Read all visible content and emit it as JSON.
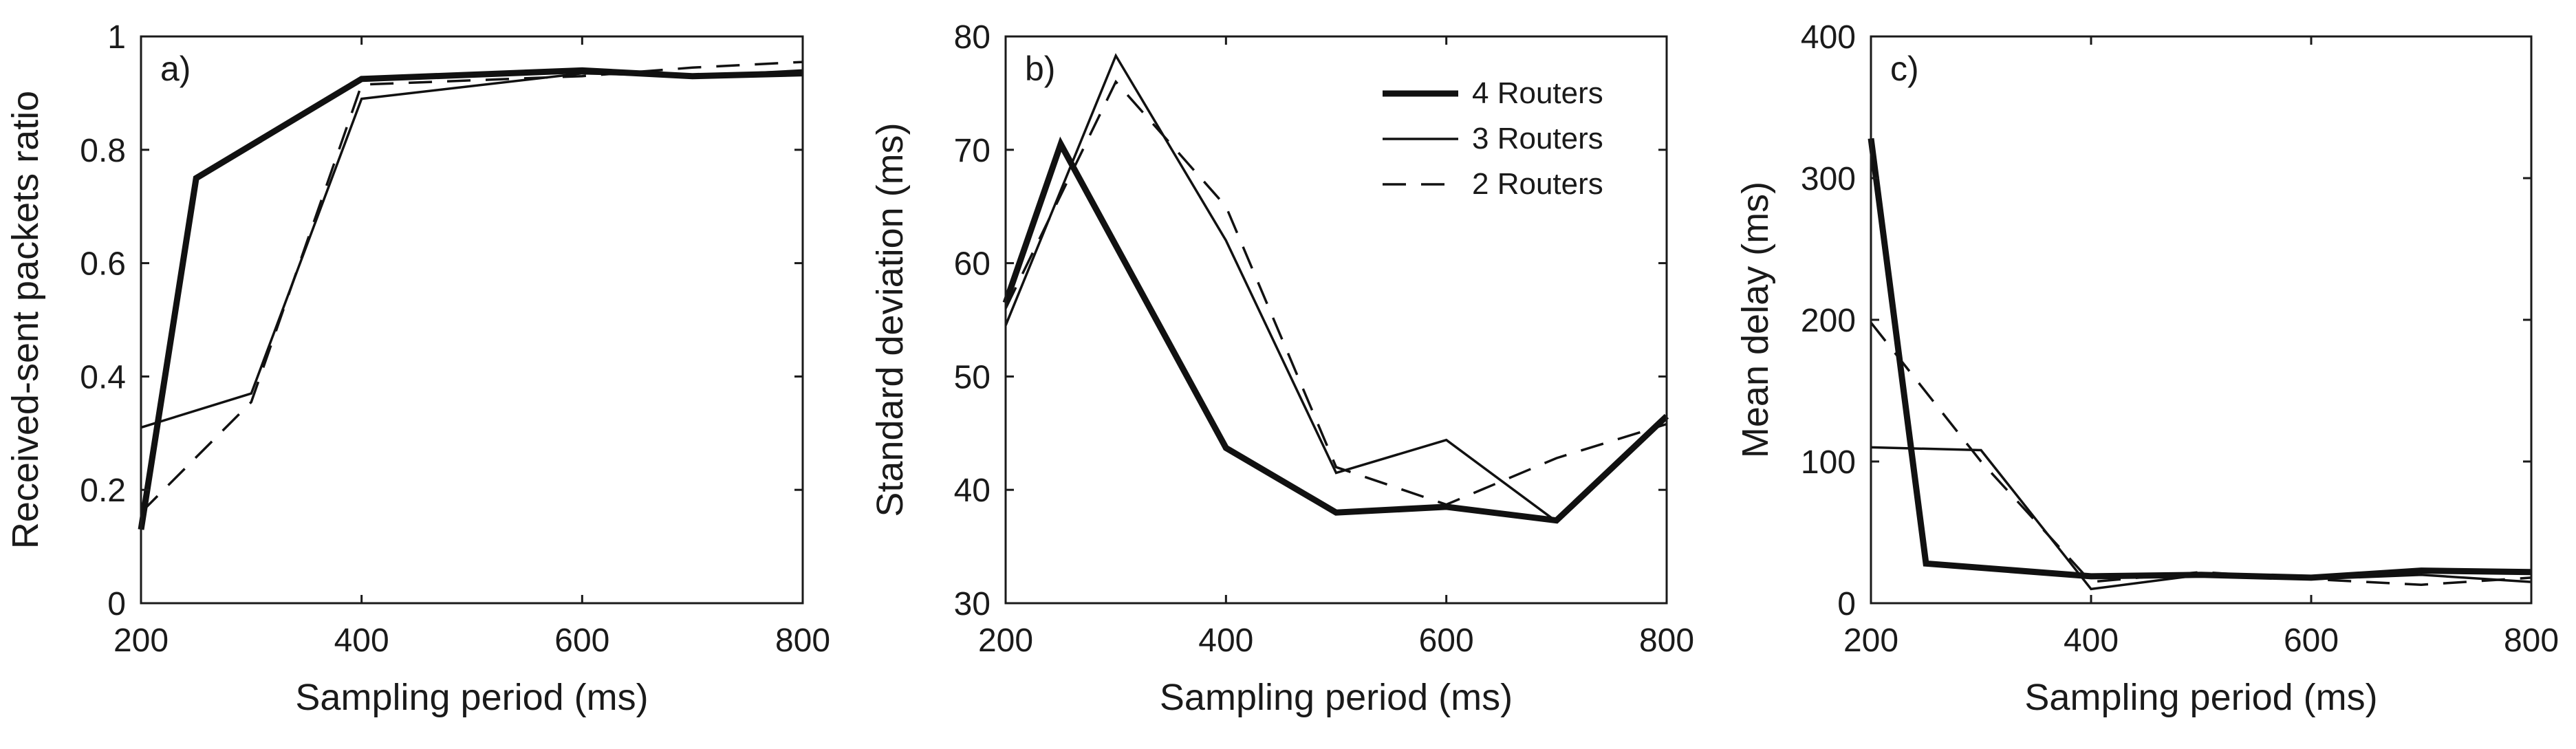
{
  "chart_data": [
    {
      "type": "line",
      "panel_label": "a)",
      "title": "",
      "xlabel": "Sampling period (ms)",
      "ylabel": "Received-sent packets ratio",
      "xlim": [
        200,
        800
      ],
      "ylim": [
        0,
        1
      ],
      "xticks": [
        200,
        400,
        600,
        800
      ],
      "yticks": [
        0,
        0.2,
        0.4,
        0.6,
        0.8,
        1
      ],
      "ytick_labels": [
        "0",
        "0.2",
        "0.4",
        "0.6",
        "0.8",
        "1"
      ],
      "grid": false,
      "legend": false,
      "series": [
        {
          "name": "4 Routers",
          "style": "thick",
          "x": [
            200,
            250,
            400,
            600,
            700,
            800
          ],
          "values": [
            0.13,
            0.75,
            0.925,
            0.94,
            0.93,
            0.935
          ]
        },
        {
          "name": "3 Routers",
          "style": "thin",
          "x": [
            200,
            300,
            400,
            600,
            700,
            800
          ],
          "values": [
            0.31,
            0.37,
            0.89,
            0.935,
            0.93,
            0.94
          ]
        },
        {
          "name": "2 Routers",
          "style": "dashed",
          "x": [
            200,
            300,
            400,
            600,
            700,
            800
          ],
          "values": [
            0.16,
            0.355,
            0.915,
            0.93,
            0.945,
            0.955
          ]
        }
      ]
    },
    {
      "type": "line",
      "panel_label": "b)",
      "title": "",
      "xlabel": "Sampling period (ms)",
      "ylabel": "Standard deviation (ms)",
      "xlim": [
        200,
        800
      ],
      "ylim": [
        30,
        80
      ],
      "xticks": [
        200,
        400,
        600,
        800
      ],
      "yticks": [
        30,
        40,
        50,
        60,
        70,
        80
      ],
      "ytick_labels": [
        "30",
        "40",
        "50",
        "60",
        "70",
        "80"
      ],
      "grid": false,
      "legend": true,
      "legend_position": "top-right",
      "series": [
        {
          "name": "4 Routers",
          "style": "thick",
          "x": [
            200,
            250,
            400,
            500,
            600,
            700,
            800
          ],
          "values": [
            56.5,
            70.5,
            43.7,
            38,
            38.5,
            37.3,
            46.5
          ]
        },
        {
          "name": "3 Routers",
          "style": "thin",
          "x": [
            200,
            300,
            400,
            500,
            600,
            700,
            800
          ],
          "values": [
            54.5,
            78.3,
            62,
            41.5,
            44.4,
            37.2,
            46.3
          ]
        },
        {
          "name": "2 Routers",
          "style": "dashed",
          "x": [
            200,
            300,
            400,
            500,
            600,
            700,
            800
          ],
          "values": [
            56,
            76,
            65,
            42,
            38.7,
            42.8,
            45.8
          ]
        }
      ]
    },
    {
      "type": "line",
      "panel_label": "c)",
      "title": "",
      "xlabel": "Sampling period (ms)",
      "ylabel": "Mean delay (ms)",
      "xlim": [
        200,
        800
      ],
      "ylim": [
        0,
        400
      ],
      "xticks": [
        200,
        400,
        600,
        800
      ],
      "yticks": [
        0,
        100,
        200,
        300,
        400
      ],
      "ytick_labels": [
        "0",
        "100",
        "200",
        "300",
        "400"
      ],
      "grid": false,
      "legend": false,
      "series": [
        {
          "name": "4 Routers",
          "style": "thick",
          "x": [
            200,
            250,
            400,
            500,
            600,
            700,
            800
          ],
          "values": [
            328,
            28,
            19,
            20,
            18,
            23,
            22
          ]
        },
        {
          "name": "3 Routers",
          "style": "thin",
          "x": [
            200,
            300,
            400,
            500,
            600,
            700,
            800
          ],
          "values": [
            110,
            108,
            10,
            20,
            17,
            20,
            15
          ]
        },
        {
          "name": "2 Routers",
          "style": "dashed",
          "x": [
            200,
            300,
            400,
            500,
            600,
            700,
            800
          ],
          "values": [
            198,
            100,
            15,
            22,
            17,
            13,
            18
          ]
        }
      ]
    }
  ],
  "legend": {
    "entries": [
      {
        "label": "4 Routers",
        "style": "thick"
      },
      {
        "label": "3 Routers",
        "style": "thin"
      },
      {
        "label": "2 Routers",
        "style": "dashed"
      }
    ]
  }
}
